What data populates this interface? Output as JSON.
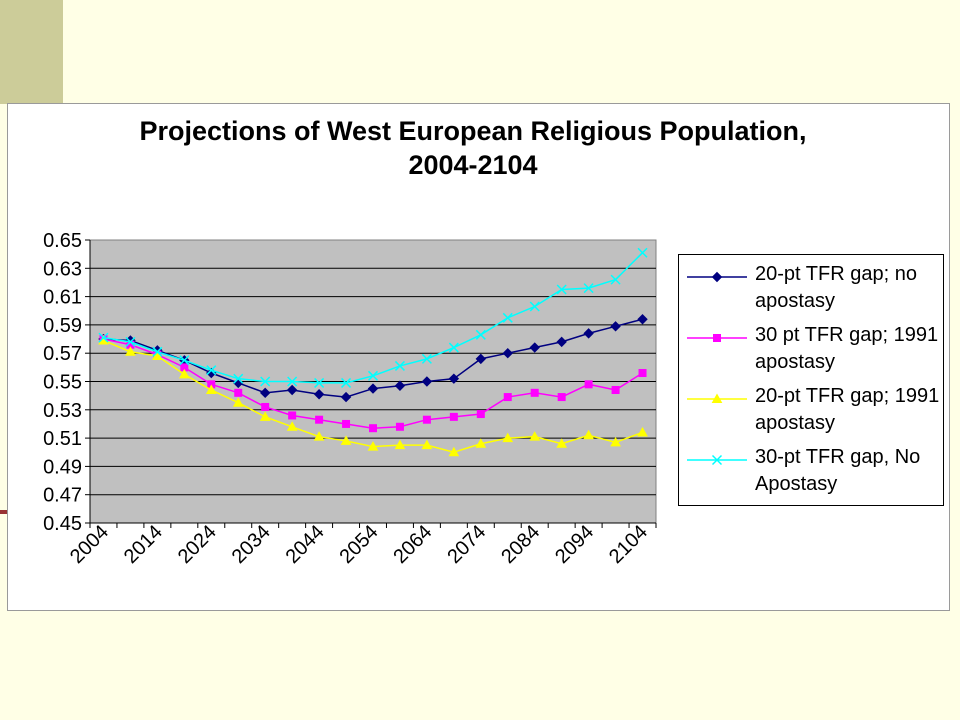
{
  "chart_data": {
    "type": "line",
    "title": "Projections of West European Religious Population, 2004-2104",
    "title_lines": [
      "Projections of West European Religious Population,",
      "2004-2104"
    ],
    "x": [
      2004,
      2009,
      2014,
      2019,
      2024,
      2029,
      2034,
      2039,
      2044,
      2049,
      2054,
      2059,
      2064,
      2069,
      2074,
      2079,
      2084,
      2089,
      2094,
      2099,
      2104
    ],
    "x_tick_labels": [
      "2004",
      "2014",
      "2024",
      "2034",
      "2044",
      "2054",
      "2064",
      "2074",
      "2084",
      "2094",
      "2104"
    ],
    "ylim": [
      0.45,
      0.65
    ],
    "y_ticks": [
      "0.65",
      "0.63",
      "0.61",
      "0.59",
      "0.57",
      "0.55",
      "0.53",
      "0.51",
      "0.49",
      "0.47",
      "0.45"
    ],
    "grid": "horizontal",
    "plot_background": "#c0c0c0",
    "legend_position": "right",
    "series": [
      {
        "name": "20-pt TFR gap; no apostasy",
        "legend_lines": [
          "20-pt TFR gap; no",
          "apostasy"
        ],
        "color": "#000080",
        "marker": "diamond",
        "values": [
          0.58,
          0.579,
          0.572,
          0.565,
          0.556,
          0.549,
          0.542,
          0.544,
          0.541,
          0.539,
          0.545,
          0.547,
          0.55,
          0.552,
          0.566,
          0.57,
          0.574,
          0.578,
          0.584,
          0.589,
          0.594
        ]
      },
      {
        "name": "30 pt TFR gap; 1991 apostasy",
        "legend_lines": [
          "30 pt TFR gap; 1991",
          "apostasy"
        ],
        "color": "#ff00ff",
        "marker": "square",
        "values": [
          0.58,
          0.576,
          0.569,
          0.56,
          0.548,
          0.542,
          0.532,
          0.526,
          0.523,
          0.52,
          0.517,
          0.518,
          0.523,
          0.525,
          0.527,
          0.539,
          0.542,
          0.539,
          0.548,
          0.544,
          0.556
        ]
      },
      {
        "name": "20-pt TFR gap; 1991 apostasy",
        "legend_lines": [
          "20-pt TFR gap; 1991",
          "apostasy"
        ],
        "color": "#ffff00",
        "marker": "triangle",
        "values": [
          0.579,
          0.571,
          0.568,
          0.555,
          0.544,
          0.535,
          0.525,
          0.518,
          0.511,
          0.508,
          0.504,
          0.505,
          0.505,
          0.5,
          0.506,
          0.51,
          0.511,
          0.506,
          0.512,
          0.507,
          0.514
        ]
      },
      {
        "name": "30-pt TFR gap, No Apostasy",
        "legend_lines": [
          "30-pt TFR gap, No",
          "Apostasy"
        ],
        "color": "#00ffff",
        "marker": "x",
        "values": [
          0.581,
          0.578,
          0.571,
          0.565,
          0.558,
          0.552,
          0.55,
          0.55,
          0.549,
          0.549,
          0.554,
          0.561,
          0.566,
          0.574,
          0.583,
          0.595,
          0.603,
          0.615,
          0.616,
          0.622,
          0.641
        ]
      }
    ]
  }
}
